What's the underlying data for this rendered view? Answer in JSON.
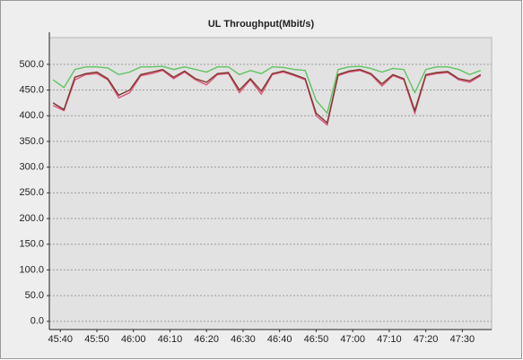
{
  "chart_data": {
    "type": "line",
    "title": "UL Throughput(Mbit/s)",
    "x": [
      2738,
      2741,
      2744,
      2747,
      2750,
      2753,
      2756,
      2759,
      2762,
      2765,
      2768,
      2771,
      2774,
      2777,
      2780,
      2783,
      2786,
      2789,
      2792,
      2795,
      2798,
      2801,
      2804,
      2807,
      2810,
      2813,
      2816,
      2819,
      2822,
      2825,
      2828,
      2831,
      2834,
      2837,
      2840,
      2843,
      2846,
      2849,
      2852,
      2855
    ],
    "series": [
      {
        "color": "#5fc45f",
        "values": [
          470,
          455,
          490,
          495,
          495,
          493,
          480,
          485,
          495,
          495,
          496,
          490,
          495,
          490,
          485,
          495,
          495,
          480,
          488,
          482,
          495,
          494,
          490,
          488,
          430,
          405,
          490,
          495,
          496,
          492,
          485,
          492,
          490,
          445,
          490,
          495,
          495,
          490,
          480,
          488
        ]
      },
      {
        "color": "#e0507c",
        "values": [
          420,
          410,
          470,
          480,
          482,
          470,
          435,
          445,
          478,
          482,
          488,
          472,
          485,
          470,
          460,
          480,
          482,
          445,
          470,
          442,
          480,
          485,
          478,
          470,
          400,
          382,
          478,
          485,
          488,
          480,
          458,
          478,
          470,
          405,
          478,
          482,
          484,
          470,
          465,
          478
        ]
      },
      {
        "color": "#7a3a2c",
        "values": [
          425,
          412,
          475,
          482,
          485,
          472,
          440,
          450,
          480,
          485,
          490,
          475,
          487,
          472,
          465,
          482,
          484,
          450,
          472,
          448,
          482,
          487,
          480,
          472,
          405,
          386,
          480,
          487,
          490,
          482,
          462,
          480,
          472,
          410,
          480,
          484,
          486,
          472,
          468,
          480
        ]
      }
    ],
    "xlim": [
      2737,
      2858
    ],
    "xticks": [
      {
        "value": 2740,
        "label": "45:40"
      },
      {
        "value": 2750,
        "label": "45:50"
      },
      {
        "value": 2760,
        "label": "46:00"
      },
      {
        "value": 2770,
        "label": "46:10"
      },
      {
        "value": 2780,
        "label": "46:20"
      },
      {
        "value": 2790,
        "label": "46:30"
      },
      {
        "value": 2800,
        "label": "46:40"
      },
      {
        "value": 2810,
        "label": "46:50"
      },
      {
        "value": 2820,
        "label": "47:00"
      },
      {
        "value": 2830,
        "label": "47:10"
      },
      {
        "value": 2840,
        "label": "47:20"
      },
      {
        "value": 2850,
        "label": "47:30"
      }
    ],
    "ylim": [
      -16,
      552
    ],
    "yticks": [
      {
        "value": 0,
        "label": "0.0"
      },
      {
        "value": 50,
        "label": "50.0"
      },
      {
        "value": 100,
        "label": "100.0"
      },
      {
        "value": 150,
        "label": "150.0"
      },
      {
        "value": 200,
        "label": "200.0"
      },
      {
        "value": 250,
        "label": "250.0"
      },
      {
        "value": 300,
        "label": "300.0"
      },
      {
        "value": 350,
        "label": "350.0"
      },
      {
        "value": 400,
        "label": "400.0"
      },
      {
        "value": 450,
        "label": "450.0"
      },
      {
        "value": 500,
        "label": "500.0"
      }
    ],
    "grid": true
  }
}
